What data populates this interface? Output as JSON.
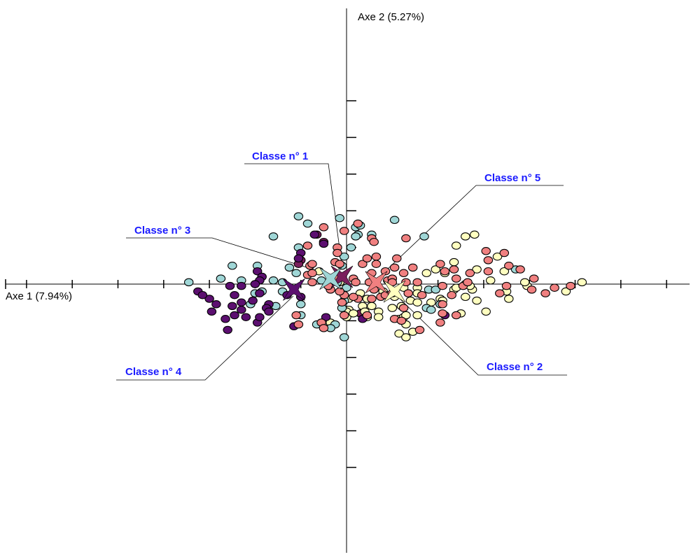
{
  "chart_data": {
    "type": "scatter",
    "xlabel": "Axe 1 (7.94%)",
    "ylabel": "Axe 2 (5.27%)",
    "xlim": [
      -7.5,
      7.5
    ],
    "ylim": [
      -6.0,
      6.1
    ],
    "x_ticks": [
      -7,
      -6,
      -5,
      -4,
      -3,
      -2,
      -1,
      1,
      2,
      3,
      4,
      5,
      6,
      7
    ],
    "y_ticks": [
      -5,
      -4,
      -3,
      -2,
      -1,
      1,
      2,
      3,
      4,
      5
    ],
    "grid": false,
    "series": [
      {
        "name": "Classe n° 1",
        "color": "#7a1f5c",
        "points": [
          [
            -0.65,
            1.35
          ],
          [
            -0.5,
            1.15
          ],
          [
            -1.0,
            0.65
          ],
          [
            -1.05,
            0.55
          ],
          [
            0.3,
            -0.8
          ]
        ]
      },
      {
        "name": "Classe n° 2",
        "color": "#ffffc0",
        "points": [
          [
            2.4,
            1.05
          ],
          [
            2.35,
            0.6
          ],
          [
            2.15,
            0.3
          ],
          [
            2.35,
            -0.15
          ],
          [
            2.6,
            -0.35
          ],
          [
            2.05,
            -0.4
          ],
          [
            2.5,
            -0.8
          ],
          [
            3.05,
            -0.75
          ],
          [
            -0.6,
            0.35
          ],
          [
            -0.15,
            0.05
          ],
          [
            0.3,
            -0.25
          ],
          [
            0.05,
            -0.4
          ],
          [
            0.45,
            -0.4
          ],
          [
            0.8,
            -0.2
          ],
          [
            1.25,
            -0.1
          ],
          [
            1.55,
            -0.1
          ],
          [
            1.05,
            -0.35
          ],
          [
            1.4,
            -0.45
          ],
          [
            1.55,
            -0.5
          ],
          [
            1.85,
            -0.5
          ],
          [
            0.05,
            -0.7
          ],
          [
            0.35,
            -0.6
          ],
          [
            0.55,
            -0.6
          ],
          [
            0.0,
            -0.75
          ],
          [
            0.0,
            -0.9
          ],
          [
            0.15,
            -0.8
          ],
          [
            0.4,
            -0.75
          ],
          [
            0.7,
            -0.75
          ],
          [
            1.0,
            -0.65
          ],
          [
            0.45,
            -0.9
          ],
          [
            0.7,
            -0.9
          ],
          [
            1.15,
            -0.95
          ],
          [
            1.25,
            -0.9
          ],
          [
            1.3,
            -0.85
          ],
          [
            1.55,
            -0.85
          ],
          [
            1.3,
            -1.1
          ],
          [
            -0.35,
            -1.05
          ],
          [
            1.15,
            -1.35
          ],
          [
            1.3,
            -1.45
          ],
          [
            1.45,
            -1.3
          ],
          [
            2.1,
            -0.45
          ],
          [
            3.55,
            -0.4
          ],
          [
            3.95,
            -0.05
          ],
          [
            4.8,
            -0.2
          ],
          [
            1.95,
            0.4
          ],
          [
            2.6,
            0.0
          ],
          [
            2.85,
            0.4
          ],
          [
            3.45,
            0.35
          ],
          [
            3.9,
            0.05
          ],
          [
            5.15,
            0.05
          ],
          [
            3.3,
            0.75
          ],
          [
            2.6,
            1.3
          ],
          [
            2.8,
            1.35
          ],
          [
            3.15,
            0.1
          ],
          [
            2.75,
            -0.15
          ],
          [
            1.75,
            0.3
          ],
          [
            2.4,
            -0.1
          ],
          [
            2.85,
            -0.45
          ],
          [
            2.7,
            -0.05
          ],
          [
            1.55,
            -0.25
          ],
          [
            1.2,
            -0.6
          ],
          [
            3.5,
            -0.2
          ]
        ]
      },
      {
        "name": "Classe n° 3",
        "color": "#9fd6d6",
        "points": [
          [
            -1.05,
            1.85
          ],
          [
            -0.85,
            1.65
          ],
          [
            1.7,
            1.3
          ],
          [
            -1.6,
            1.3
          ],
          [
            -1.05,
            1.0
          ],
          [
            0.1,
            1.0
          ],
          [
            -0.05,
            0.75
          ],
          [
            -0.1,
            0.5
          ],
          [
            -1.25,
            0.45
          ],
          [
            -1.6,
            0.1
          ],
          [
            -1.95,
            0.5
          ],
          [
            -2.5,
            0.5
          ],
          [
            -2.75,
            0.15
          ],
          [
            -3.45,
            0.05
          ],
          [
            -1.1,
            0.3
          ],
          [
            -2.3,
            0.1
          ],
          [
            -2.0,
            -0.25
          ],
          [
            -1.85,
            -0.2
          ],
          [
            -1.4,
            -0.2
          ],
          [
            -2.1,
            -0.55
          ],
          [
            -1.55,
            -0.6
          ],
          [
            -1.0,
            -0.55
          ],
          [
            -1.0,
            -0.85
          ],
          [
            -0.05,
            -0.45
          ],
          [
            -0.1,
            -0.65
          ],
          [
            -0.25,
            -1.1
          ],
          [
            -0.65,
            -1.1
          ],
          [
            -0.35,
            -1.2
          ],
          [
            -0.05,
            -1.45
          ],
          [
            0.25,
            1.35
          ],
          [
            0.2,
            1.3
          ],
          [
            0.2,
            1.55
          ],
          [
            0.3,
            1.6
          ],
          [
            0.55,
            1.35
          ],
          [
            1.05,
            1.75
          ],
          [
            -0.55,
            0.1
          ],
          [
            -0.2,
            0.05
          ],
          [
            0.0,
            -0.1
          ],
          [
            1.8,
            -0.15
          ],
          [
            1.75,
            -0.65
          ],
          [
            2.05,
            -0.55
          ],
          [
            3.7,
            0.4
          ],
          [
            1.95,
            -0.15
          ],
          [
            1.85,
            -0.7
          ],
          [
            -0.15,
            1.8
          ],
          [
            -1.4,
            0.05
          ]
        ]
      },
      {
        "name": "Classe n° 4",
        "color": "#5c0f70",
        "points": [
          [
            -0.7,
            1.35
          ],
          [
            -0.5,
            1.1
          ],
          [
            -1.0,
            0.85
          ],
          [
            -1.05,
            0.7
          ],
          [
            -1.95,
            0.35
          ],
          [
            -1.85,
            0.2
          ],
          [
            -1.9,
            0.1
          ],
          [
            -2.0,
            0.0
          ],
          [
            -2.3,
            -0.05
          ],
          [
            -2.55,
            -0.05
          ],
          [
            -3.25,
            -0.2
          ],
          [
            -3.0,
            -0.4
          ],
          [
            -2.45,
            -0.3
          ],
          [
            -1.9,
            -0.25
          ],
          [
            -2.05,
            -0.45
          ],
          [
            -2.3,
            -0.5
          ],
          [
            -2.5,
            -0.6
          ],
          [
            -2.85,
            -0.55
          ],
          [
            -1.7,
            -0.55
          ],
          [
            -1.75,
            -0.65
          ],
          [
            -2.3,
            -0.7
          ],
          [
            -2.45,
            -0.85
          ],
          [
            -2.65,
            -0.95
          ],
          [
            -2.2,
            -0.9
          ],
          [
            -2.95,
            -0.75
          ],
          [
            -1.7,
            -0.75
          ],
          [
            -1.95,
            -1.05
          ],
          [
            -2.6,
            -1.25
          ],
          [
            -1.9,
            -0.9
          ],
          [
            -1.15,
            -1.15
          ],
          [
            -0.45,
            -0.9
          ],
          [
            -3.15,
            -0.3
          ],
          [
            0.35,
            -0.95
          ],
          [
            2.15,
            -0.85
          ],
          [
            -1.3,
            -0.3
          ],
          [
            -1.0,
            -0.35
          ]
        ]
      },
      {
        "name": "Classe n° 5",
        "color": "#f08080",
        "points": [
          [
            -0.5,
            1.55
          ],
          [
            -0.05,
            1.45
          ],
          [
            0.25,
            1.65
          ],
          [
            0.55,
            1.25
          ],
          [
            1.3,
            1.25
          ],
          [
            -0.2,
            1.0
          ],
          [
            0.6,
            1.15
          ],
          [
            -0.85,
            1.05
          ],
          [
            -0.2,
            0.85
          ],
          [
            -0.25,
            0.6
          ],
          [
            -0.15,
            0.55
          ],
          [
            0.15,
            0.15
          ],
          [
            0.55,
            0.3
          ],
          [
            0.85,
            0.35
          ],
          [
            0.9,
            0.1
          ],
          [
            1.0,
            0.15
          ],
          [
            1.0,
            0.05
          ],
          [
            1.3,
            0.05
          ],
          [
            1.55,
            0.05
          ],
          [
            0.2,
            0.05
          ],
          [
            0.5,
            0.05
          ],
          [
            -0.25,
            0.2
          ],
          [
            -0.75,
            0.05
          ],
          [
            -0.35,
            -0.15
          ],
          [
            -0.05,
            -0.3
          ],
          [
            0.25,
            -0.4
          ],
          [
            0.55,
            -0.4
          ],
          [
            0.75,
            -0.35
          ],
          [
            0.85,
            -0.3
          ],
          [
            1.0,
            -0.25
          ],
          [
            1.35,
            -0.25
          ],
          [
            1.65,
            -0.3
          ],
          [
            2.15,
            0.35
          ],
          [
            2.4,
            0.15
          ],
          [
            2.1,
            -0.05
          ],
          [
            2.55,
            -0.05
          ],
          [
            2.7,
            0.3
          ],
          [
            3.1,
            0.35
          ],
          [
            3.35,
            -0.25
          ],
          [
            3.5,
            -0.05
          ],
          [
            3.1,
            0.65
          ],
          [
            3.55,
            0.5
          ],
          [
            3.8,
            0.4
          ],
          [
            4.1,
            0.15
          ],
          [
            4.05,
            -0.15
          ],
          [
            4.35,
            -0.25
          ],
          [
            4.55,
            -0.1
          ],
          [
            4.9,
            -0.05
          ],
          [
            2.1,
            -0.55
          ],
          [
            2.3,
            -0.3
          ],
          [
            2.1,
            -0.8
          ],
          [
            2.4,
            -0.85
          ],
          [
            1.25,
            -0.65
          ],
          [
            -1.1,
            -0.85
          ],
          [
            -1.05,
            -1.1
          ],
          [
            -0.55,
            -1.05
          ],
          [
            -0.5,
            -1.2
          ],
          [
            0.15,
            -0.35
          ],
          [
            -0.1,
            -0.5
          ],
          [
            -0.05,
            -0.85
          ],
          [
            0.45,
            -0.85
          ],
          [
            1.6,
            -1.25
          ],
          [
            1.05,
            -0.95
          ],
          [
            1.2,
            -1.0
          ],
          [
            2.05,
            -1.05
          ],
          [
            -0.8,
            0.5
          ],
          [
            -0.85,
            0.25
          ],
          [
            0.35,
            0.55
          ],
          [
            0.65,
            0.55
          ],
          [
            0.45,
            0.7
          ],
          [
            0.65,
            0.75
          ],
          [
            -0.4,
            -0.05
          ],
          [
            0.6,
            -0.15
          ],
          [
            1.25,
            0.3
          ],
          [
            -0.15,
            -0.2
          ],
          [
            1.45,
            0.45
          ],
          [
            1.05,
            0.45
          ],
          [
            2.05,
            0.55
          ],
          [
            2.35,
            0.4
          ],
          [
            1.1,
            0.7
          ],
          [
            -0.75,
            0.55
          ],
          [
            -0.75,
            0.3
          ],
          [
            3.05,
            0.9
          ],
          [
            3.45,
            0.85
          ],
          [
            2.65,
            0.05
          ]
        ]
      }
    ],
    "centroids": [
      {
        "name": "Classe n° 1",
        "x": -0.1,
        "y": 0.2,
        "color": "#7a1f5c"
      },
      {
        "name": "Classe n° 2",
        "x": 1.05,
        "y": -0.2,
        "color": "#ffffc0"
      },
      {
        "name": "Classe n° 3",
        "x": -0.35,
        "y": 0.15,
        "color": "#9fd6d6"
      },
      {
        "name": "Classe n° 4",
        "x": -1.15,
        "y": -0.15,
        "color": "#5c0f70"
      },
      {
        "name": "Classe n° 5",
        "x": 0.65,
        "y": 0.05,
        "color": "#f08080"
      }
    ],
    "annotations": [
      {
        "text": "Classe n° 1",
        "target": "Classe n° 1"
      },
      {
        "text": "Classe n° 2",
        "target": "Classe n° 2"
      },
      {
        "text": "Classe n° 3",
        "target": "Classe n° 3"
      },
      {
        "text": "Classe n° 4",
        "target": "Classe n° 4"
      },
      {
        "text": "Classe n° 5",
        "target": "Classe n° 5"
      }
    ]
  }
}
